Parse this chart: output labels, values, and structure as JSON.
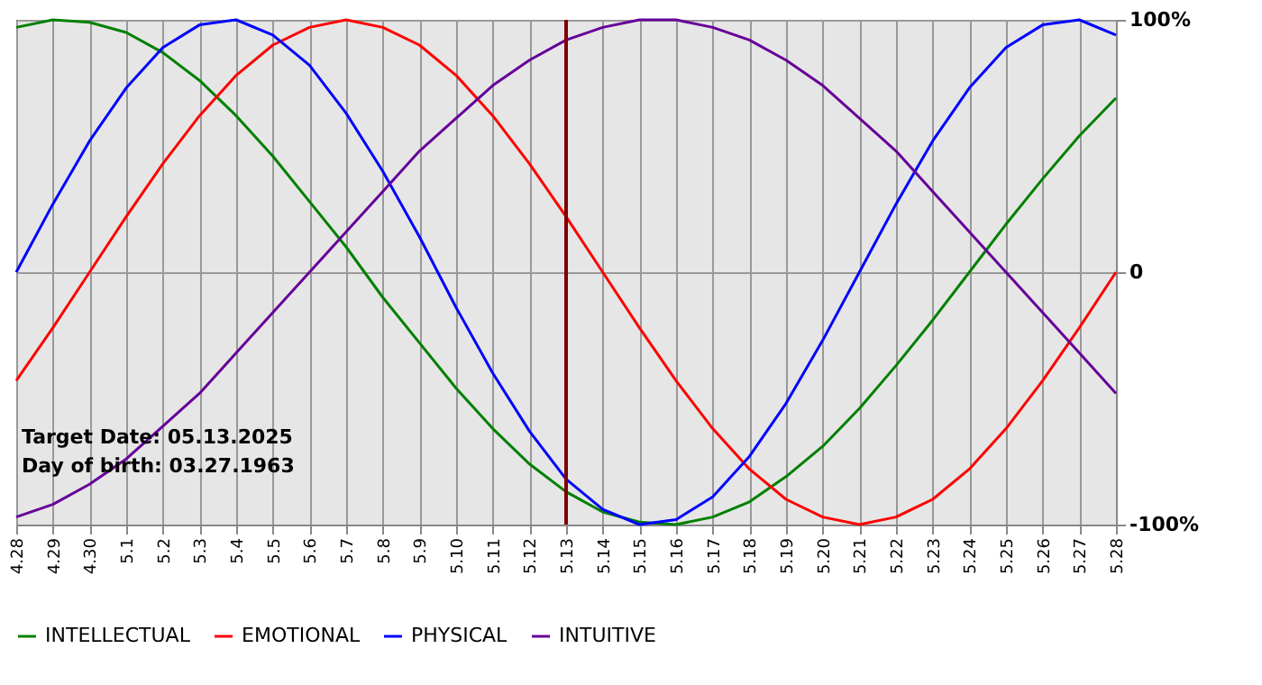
{
  "chart_data": {
    "type": "line",
    "categories": [
      "4.28",
      "4.29",
      "4.30",
      "5.1",
      "5.2",
      "5.3",
      "5.4",
      "5.5",
      "5.6",
      "5.7",
      "5.8",
      "5.9",
      "5.10",
      "5.11",
      "5.12",
      "5.13",
      "5.14",
      "5.15",
      "5.16",
      "5.17",
      "5.18",
      "5.19",
      "5.20",
      "5.21",
      "5.22",
      "5.23",
      "5.24",
      "5.25",
      "5.26",
      "5.27",
      "5.28"
    ],
    "series": [
      {
        "name": "INTELLECTUAL",
        "color": "#008000",
        "values": [
          97,
          100,
          99,
          95,
          87,
          76,
          62,
          46,
          28,
          10,
          -10,
          -28,
          -46,
          -62,
          -76,
          -87,
          -95,
          -99,
          -100,
          -97,
          -91,
          -81,
          -69,
          -54,
          -37,
          -19,
          0,
          19,
          37,
          54,
          69
        ]
      },
      {
        "name": "EMOTIONAL",
        "color": "#ff0000",
        "values": [
          -43,
          -22,
          0,
          22,
          43,
          62,
          78,
          90,
          97,
          100,
          97,
          90,
          78,
          62,
          43,
          22,
          0,
          -22,
          -43,
          -62,
          -78,
          -90,
          -97,
          -100,
          -97,
          -90,
          -78,
          -62,
          -43,
          -22,
          0
        ]
      },
      {
        "name": "PHYSICAL",
        "color": "#0000ff",
        "values": [
          0,
          27,
          52,
          73,
          89,
          98,
          100,
          94,
          82,
          63,
          40,
          14,
          -14,
          -40,
          -63,
          -82,
          -94,
          -100,
          -98,
          -89,
          -73,
          -52,
          -27,
          0,
          27,
          52,
          73,
          89,
          98,
          100,
          94
        ]
      },
      {
        "name": "INTUITIVE",
        "color": "#660099",
        "values": [
          -97,
          -92,
          -84,
          -74,
          -61,
          -48,
          -32,
          -16,
          0,
          16,
          32,
          48,
          61,
          74,
          84,
          92,
          97,
          100,
          100,
          97,
          92,
          84,
          74,
          61,
          48,
          32,
          16,
          0,
          -16,
          -32,
          -48
        ]
      }
    ],
    "ylim": [
      -100,
      100
    ],
    "yticks": [
      {
        "value": 100,
        "label": "100%"
      },
      0,
      {
        "value": -100,
        "label": "-100%"
      }
    ],
    "ref_lines": [
      {
        "axis": "x",
        "value": "5.13",
        "color": "#800000"
      }
    ],
    "annotations": [
      "Target Date: 05.13.2025",
      "Day of birth: 03.27.1963"
    ],
    "grid": true,
    "legend": "bottom left",
    "marker": "none",
    "line_style": "solid"
  }
}
